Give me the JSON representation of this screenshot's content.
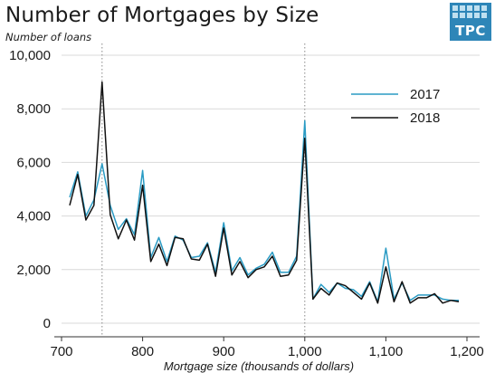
{
  "header": {
    "title": "Number of Mortgages by Size",
    "logo_text": "TPC"
  },
  "colors": {
    "series_2017": "#2a9bc4",
    "series_2018": "#111111",
    "grid": "#d9d9d9",
    "reference": "#888888",
    "logo": "#2e86b8"
  },
  "chart_data": {
    "type": "line",
    "title": "Number of Mortgages by Size",
    "ylabel": "Number of loans",
    "xlabel": "Mortgage size (thousands of dollars)",
    "xlim": [
      700,
      1200
    ],
    "ylim": [
      0,
      10000
    ],
    "x_ticks": [
      700,
      800,
      900,
      1000,
      1100,
      1200
    ],
    "x_tick_labels": [
      "700",
      "800",
      "900",
      "1,000",
      "1,100",
      "1,200"
    ],
    "y_ticks": [
      0,
      2000,
      4000,
      6000,
      8000,
      10000
    ],
    "y_tick_labels": [
      "0",
      "2,000",
      "4,000",
      "6,000",
      "8,000",
      "10,000"
    ],
    "reference_lines_x": [
      750,
      1000
    ],
    "grid": "horizontal",
    "legend_position": "top-right",
    "x": [
      710,
      720,
      730,
      740,
      750,
      760,
      770,
      780,
      790,
      800,
      810,
      820,
      830,
      840,
      850,
      860,
      870,
      880,
      890,
      900,
      910,
      920,
      930,
      940,
      950,
      960,
      970,
      980,
      990,
      1000,
      1010,
      1020,
      1030,
      1040,
      1050,
      1060,
      1070,
      1080,
      1090,
      1100,
      1110,
      1120,
      1130,
      1140,
      1150,
      1160,
      1170,
      1180,
      1190
    ],
    "series": [
      {
        "name": "2017",
        "values": [
          4700,
          5650,
          4000,
          4600,
          5950,
          4400,
          3500,
          3900,
          3300,
          5700,
          2450,
          3200,
          2300,
          3250,
          3100,
          2450,
          2500,
          3000,
          1900,
          3750,
          1950,
          2450,
          1800,
          2050,
          2200,
          2650,
          1900,
          1900,
          2500,
          7550,
          900,
          1450,
          1150,
          1500,
          1300,
          1250,
          1000,
          1550,
          800,
          2800,
          900,
          1500,
          850,
          1050,
          1050,
          1050,
          900,
          850,
          850
        ]
      },
      {
        "name": "2018",
        "values": [
          4400,
          5550,
          3850,
          4400,
          9000,
          4050,
          3150,
          3850,
          3100,
          5150,
          2300,
          2950,
          2150,
          3200,
          3150,
          2400,
          2350,
          2950,
          1750,
          3550,
          1800,
          2300,
          1700,
          2000,
          2100,
          2500,
          1750,
          1800,
          2350,
          6900,
          900,
          1300,
          1050,
          1500,
          1400,
          1150,
          900,
          1500,
          750,
          2100,
          800,
          1550,
          750,
          950,
          950,
          1100,
          750,
          850,
          800
        ]
      }
    ]
  }
}
